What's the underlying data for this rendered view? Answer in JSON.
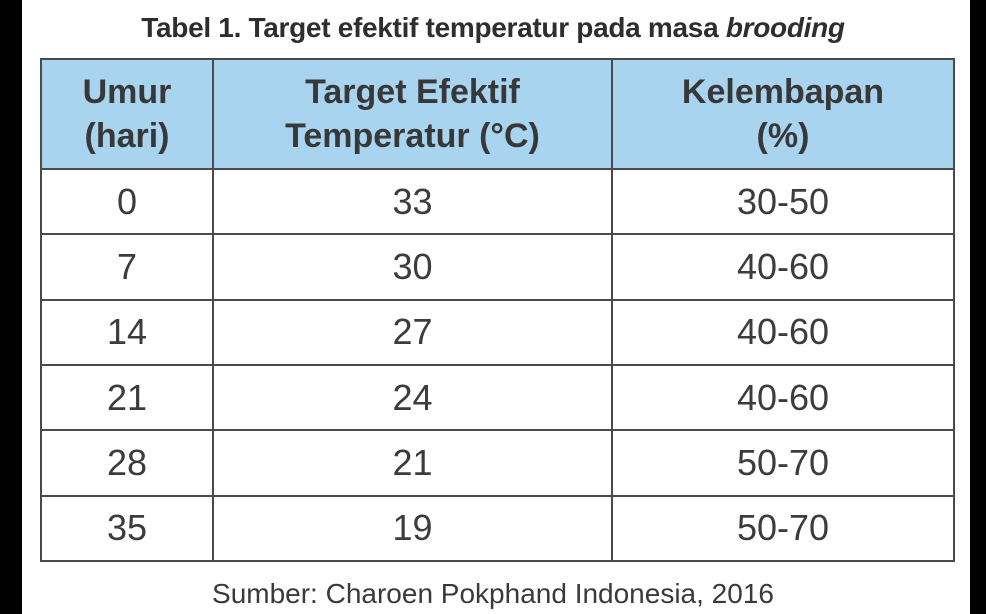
{
  "caption": {
    "prefix": "Tabel 1. Target efektif temperatur pada masa ",
    "italic": "brooding"
  },
  "table": {
    "headers": [
      {
        "line1": "Umur",
        "line2": "(hari)"
      },
      {
        "line1": "Target Efektif",
        "line2": "Temperatur (°C)"
      },
      {
        "line1": "Kelembapan",
        "line2": "(%)"
      }
    ],
    "rows": [
      [
        "0",
        "33",
        "30-50"
      ],
      [
        "7",
        "30",
        "40-60"
      ],
      [
        "14",
        "27",
        "40-60"
      ],
      [
        "21",
        "24",
        "40-60"
      ],
      [
        "28",
        "21",
        "50-70"
      ],
      [
        "35",
        "19",
        "50-70"
      ]
    ]
  },
  "source": "Sumber: Charoen Pokphand Indonesia, 2016",
  "colors": {
    "header_bg": "#a9d4ef",
    "border": "#4a4a4a",
    "frame": "#000000"
  }
}
